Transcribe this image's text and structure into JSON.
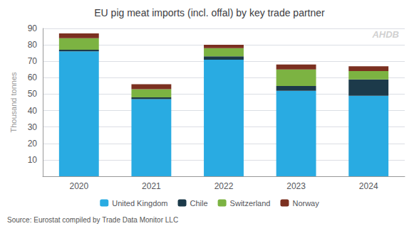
{
  "chart_data": {
    "type": "bar",
    "stacked": true,
    "title": "EU pig meat imports (incl. offal) by key trade partner",
    "ylabel": "Thousand tonnes",
    "source": "Source: Eurostat compiled by Trade Data Monitor LLC",
    "annotations": [
      {
        "text": "AHDB",
        "color": "#c8c8c8"
      }
    ],
    "categories": [
      "2020",
      "2021",
      "2022",
      "2023",
      "2024"
    ],
    "series": [
      {
        "name": "United Kingdom",
        "color": "#29ABE2",
        "values": [
          76,
          47,
          71,
          52,
          49
        ]
      },
      {
        "name": "Chile",
        "color": "#1C3A4A",
        "values": [
          1,
          1,
          2,
          3,
          10
        ]
      },
      {
        "name": "Switzerland",
        "color": "#7CB342",
        "values": [
          7,
          5,
          5,
          10,
          5
        ]
      },
      {
        "name": "Norway",
        "color": "#7B3020",
        "values": [
          3,
          3,
          2,
          3,
          3
        ]
      }
    ],
    "ylim": [
      0,
      90
    ],
    "yticks": [
      10,
      20,
      30,
      40,
      50,
      60,
      70,
      80,
      90
    ],
    "grid": true,
    "legend": "bottom"
  }
}
